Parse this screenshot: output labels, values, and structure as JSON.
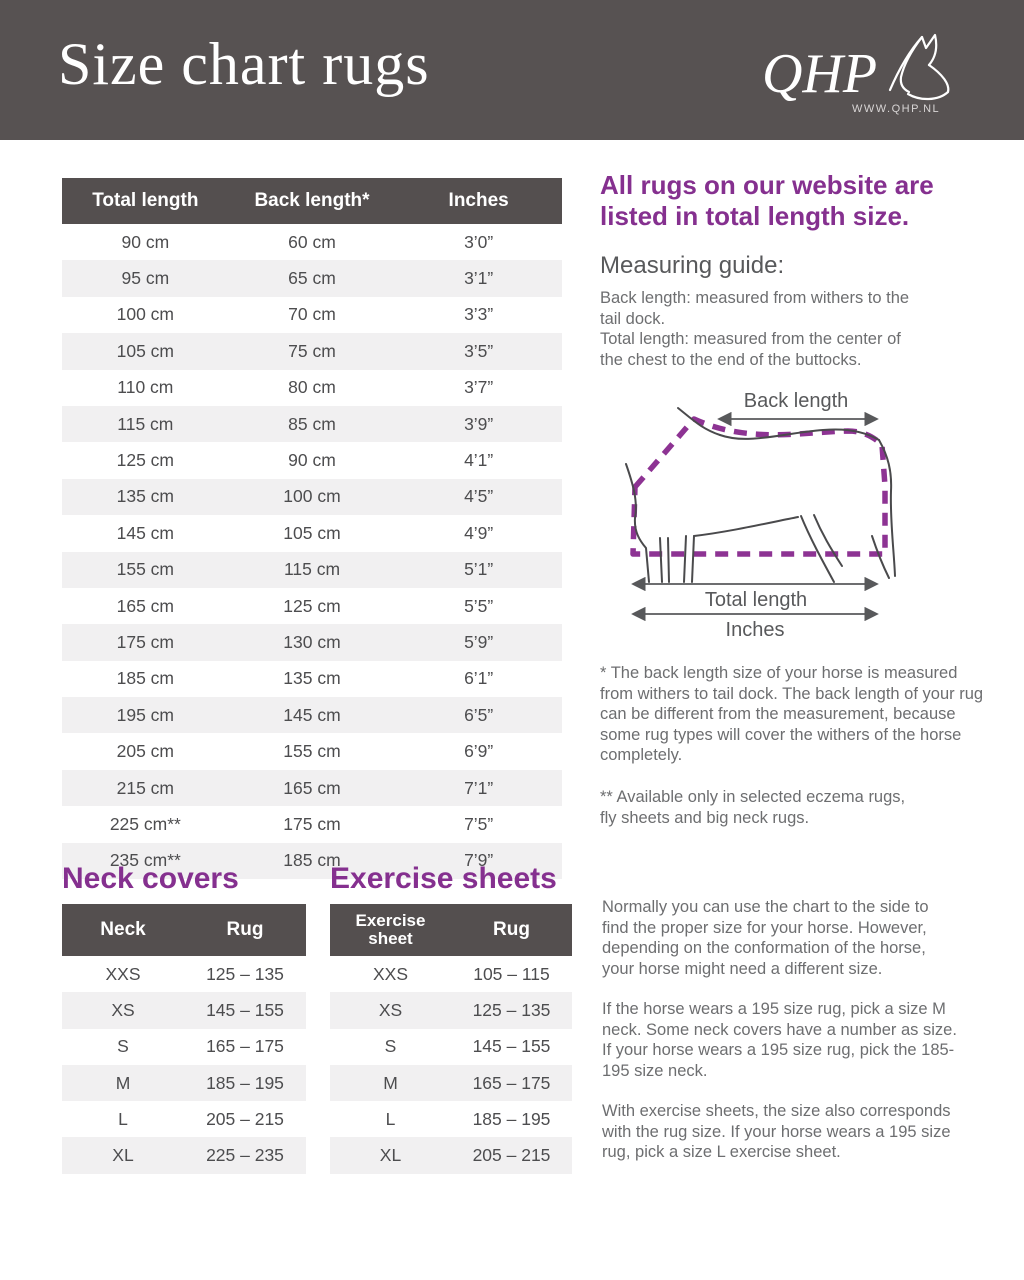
{
  "header": {
    "title": "Size chart rugs",
    "logo_brand": "QHP",
    "logo_url": "WWW.QHP.NL"
  },
  "colors": {
    "band_gray": "#575252",
    "table_header_gray": "#544f4f",
    "alt_row_gray": "#f1f0f1",
    "purple": "#85308f",
    "dash_purple": "#8d3393",
    "text_gray": "#6d6e70",
    "cell_gray": "#4d4d4f"
  },
  "main_table": {
    "columns": [
      "Total length",
      "Back length*",
      "Inches"
    ],
    "rows": [
      [
        "90 cm",
        "60 cm",
        "3’0”"
      ],
      [
        "95 cm",
        "65 cm",
        "3’1”"
      ],
      [
        "100 cm",
        "70 cm",
        "3’3”"
      ],
      [
        "105 cm",
        "75 cm",
        "3’5”"
      ],
      [
        "110 cm",
        "80 cm",
        "3’7”"
      ],
      [
        "115 cm",
        "85 cm",
        "3’9”"
      ],
      [
        "125 cm",
        "90 cm",
        "4’1”"
      ],
      [
        "135 cm",
        "100 cm",
        "4’5”"
      ],
      [
        "145 cm",
        "105 cm",
        "4’9”"
      ],
      [
        "155 cm",
        "115 cm",
        "5’1”"
      ],
      [
        "165 cm",
        "125 cm",
        "5’5”"
      ],
      [
        "175 cm",
        "130 cm",
        "5’9”"
      ],
      [
        "185 cm",
        "135 cm",
        "6’1”"
      ],
      [
        "195 cm",
        "145 cm",
        "6’5”"
      ],
      [
        "205 cm",
        "155 cm",
        "6’9”"
      ],
      [
        "215 cm",
        "165 cm",
        "7’1”"
      ],
      [
        "225 cm**",
        "175 cm",
        "7’5”"
      ],
      [
        "235 cm**",
        "185 cm",
        "7’9”"
      ]
    ]
  },
  "side": {
    "headline": "All rugs on our website are\nlisted in total length size.",
    "guide_title": "Measuring guide:",
    "guide_text": "Back length: measured from withers to the\ntail dock.\nTotal length: measured from the center of\nthe chest to the end of the buttocks.",
    "diagram_labels": {
      "back_length": "Back length",
      "total_length": "Total length",
      "inches": "Inches"
    },
    "footnote_1": "* The back length size of your horse is measured\nfrom withers to tail dock. The back length of your rug\ncan be different from the measurement, because\nsome rug types will cover the withers of the horse\ncompletely.",
    "footnote_2": "** Available only in selected eczema rugs,\nfly sheets and big neck rugs."
  },
  "neck_covers": {
    "title": "Neck covers",
    "columns": [
      "Neck",
      "Rug"
    ],
    "rows": [
      [
        "XXS",
        "125 – 135"
      ],
      [
        "XS",
        "145 – 155"
      ],
      [
        "S",
        "165 – 175"
      ],
      [
        "M",
        "185 – 195"
      ],
      [
        "L",
        "205 – 215"
      ],
      [
        "XL",
        "225 – 235"
      ]
    ]
  },
  "exercise_sheets": {
    "title": "Exercise sheets",
    "columns": [
      "Exercise sheet",
      "Rug"
    ],
    "rows": [
      [
        "XXS",
        "105 – 115"
      ],
      [
        "XS",
        "125 – 135"
      ],
      [
        "S",
        "145 – 155"
      ],
      [
        "M",
        "165 – 175"
      ],
      [
        "L",
        "185 – 195"
      ],
      [
        "XL",
        "205 – 215"
      ]
    ]
  },
  "bottom_text": {
    "p1": "Normally you can use the chart to the side to\nfind the proper size for your horse.  However,\ndepending on the conformation of the horse,\nyour horse might need a different size.",
    "p2": "If the horse wears a 195 size rug, pick a size M\nneck. Some neck covers have a number as size.\nIf your horse wears a 195 size rug, pick the 185-\n195 size neck.",
    "p3": "With exercise sheets, the size also corresponds\nwith the rug size. If your horse wears a 195 size\nrug, pick a size L exercise sheet."
  }
}
